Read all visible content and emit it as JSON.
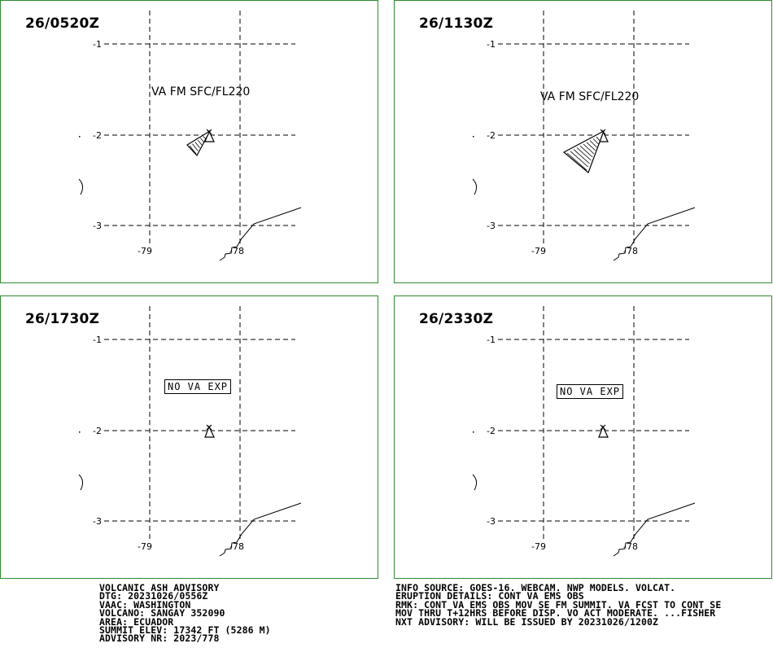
{
  "panels": [
    {
      "time": "26/0520Z",
      "annotation": "VA FM SFC/FL220",
      "box": "",
      "plume": "small"
    },
    {
      "time": "26/1130Z",
      "annotation": "VA FM SFC/FL220",
      "box": "",
      "plume": "large"
    },
    {
      "time": "26/1730Z",
      "annotation": "",
      "box": "NO VA EXP",
      "plume": "none"
    },
    {
      "time": "26/2330Z",
      "annotation": "",
      "box": "NO VA EXP",
      "plume": "none"
    }
  ],
  "grid": {
    "lat_labels": [
      "-1",
      "-2",
      "-3"
    ],
    "lon_labels": [
      "-79",
      "-78"
    ]
  },
  "colors": {
    "frame": "#2e8b2e",
    "lines": "#000000"
  },
  "advisory_left": [
    "VOLCANIC ASH ADVISORY",
    "DTG: 20231026/0556Z",
    "VAAC: WASHINGTON",
    "VOLCANO: SANGAY 352090",
    "AREA: ECUADOR",
    "SUMMIT ELEV: 17342 FT (5286 M)",
    "ADVISORY NR: 2023/778"
  ],
  "advisory_right": [
    "INFO SOURCE: GOES-16. WEBCAM. NWP MODELS. VOLCAT.",
    "ERUPTION DETAILS: CONT VA EMS OBS",
    "RMK: CONT VA EMS OBS MOV SE FM SUMMIT. VA FCST TO CONT SE",
    "MOV THRU T+12HRS BEFORE DISP. VO ACT MODERATE. ...FISHER",
    "NXT ADVISORY: WILL BE ISSUED BY 20231026/1200Z"
  ]
}
